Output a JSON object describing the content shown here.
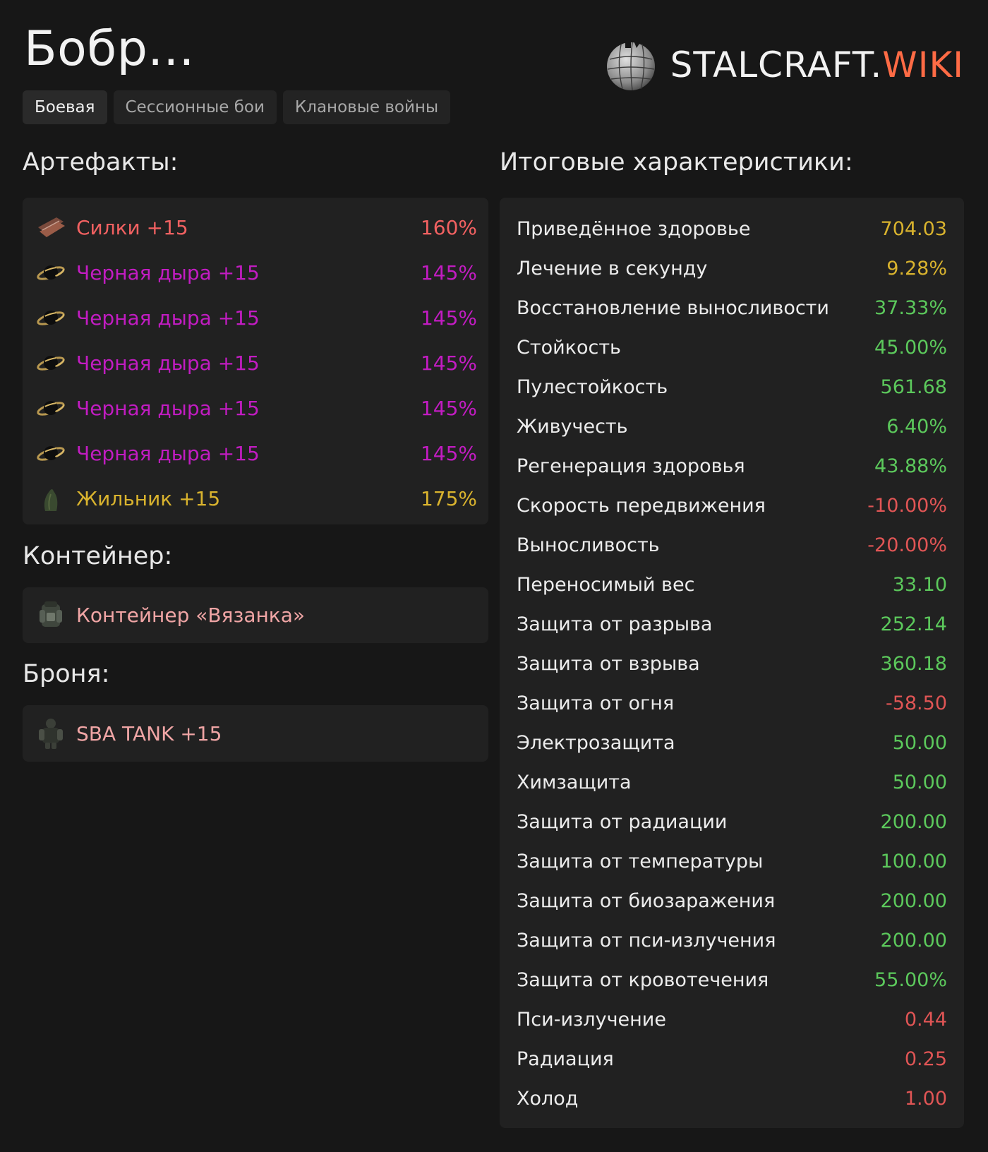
{
  "header": {
    "title": "Бобр..."
  },
  "logo": {
    "main": "STALCRAFT.",
    "accent": "WIKI"
  },
  "tabs": [
    {
      "label": "Боевая",
      "active": true
    },
    {
      "label": "Сессионные бои",
      "active": false
    },
    {
      "label": "Клановые войны",
      "active": false
    }
  ],
  "artifacts": {
    "heading": "Артефакты:",
    "items": [
      {
        "name": "Силки +15",
        "value": "160%",
        "color": "#f26161",
        "icon": "snare-artifact-icon"
      },
      {
        "name": "Черная дыра +15",
        "value": "145%",
        "color": "#c21cc2",
        "icon": "black-hole-artifact-icon"
      },
      {
        "name": "Черная дыра +15",
        "value": "145%",
        "color": "#c21cc2",
        "icon": "black-hole-artifact-icon"
      },
      {
        "name": "Черная дыра +15",
        "value": "145%",
        "color": "#c21cc2",
        "icon": "black-hole-artifact-icon"
      },
      {
        "name": "Черная дыра +15",
        "value": "145%",
        "color": "#c21cc2",
        "icon": "black-hole-artifact-icon"
      },
      {
        "name": "Черная дыра +15",
        "value": "145%",
        "color": "#c21cc2",
        "icon": "black-hole-artifact-icon"
      },
      {
        "name": "Жильник +15",
        "value": "175%",
        "color": "#d9b32e",
        "icon": "vein-artifact-icon"
      }
    ]
  },
  "container": {
    "heading": "Контейнер:",
    "name": "Контейнер «Вязанка»",
    "icon": "container-backpack-icon"
  },
  "armor": {
    "heading": "Броня:",
    "name": "SBA TANK +15",
    "icon": "armor-suit-icon"
  },
  "stats": {
    "heading": "Итоговые характеристики:",
    "items": [
      {
        "label": "Приведённое здоровье",
        "value": "704.03",
        "color": "#d9b32e"
      },
      {
        "label": "Лечение в секунду",
        "value": "9.28%",
        "color": "#d9b32e"
      },
      {
        "label": "Восстановление выносливости",
        "value": "37.33%",
        "color": "#5cc95c"
      },
      {
        "label": "Стойкость",
        "value": "45.00%",
        "color": "#5cc95c"
      },
      {
        "label": "Пулестойкость",
        "value": "561.68",
        "color": "#5cc95c"
      },
      {
        "label": "Живучесть",
        "value": "6.40%",
        "color": "#5cc95c"
      },
      {
        "label": "Регенерация здоровья",
        "value": "43.88%",
        "color": "#5cc95c"
      },
      {
        "label": "Скорость передвижения",
        "value": "-10.00%",
        "color": "#e05555"
      },
      {
        "label": "Выносливость",
        "value": "-20.00%",
        "color": "#e05555"
      },
      {
        "label": "Переносимый вес",
        "value": "33.10",
        "color": "#5cc95c"
      },
      {
        "label": "Защита от разрыва",
        "value": "252.14",
        "color": "#5cc95c"
      },
      {
        "label": "Защита от взрыва",
        "value": "360.18",
        "color": "#5cc95c"
      },
      {
        "label": "Защита от огня",
        "value": "-58.50",
        "color": "#e05555"
      },
      {
        "label": "Электрозащита",
        "value": "50.00",
        "color": "#5cc95c"
      },
      {
        "label": "Химзащита",
        "value": "50.00",
        "color": "#5cc95c"
      },
      {
        "label": "Защита от радиации",
        "value": "200.00",
        "color": "#5cc95c"
      },
      {
        "label": "Защита от температуры",
        "value": "100.00",
        "color": "#5cc95c"
      },
      {
        "label": "Защита от биозаражения",
        "value": "200.00",
        "color": "#5cc95c"
      },
      {
        "label": "Защита от пси-излучения",
        "value": "200.00",
        "color": "#5cc95c"
      },
      {
        "label": "Защита от кровотечения",
        "value": "55.00%",
        "color": "#5cc95c"
      },
      {
        "label": "Пси-излучение",
        "value": "0.44",
        "color": "#e05555"
      },
      {
        "label": "Радиация",
        "value": "0.25",
        "color": "#e05555"
      },
      {
        "label": "Холод",
        "value": "1.00",
        "color": "#e05555"
      }
    ]
  }
}
